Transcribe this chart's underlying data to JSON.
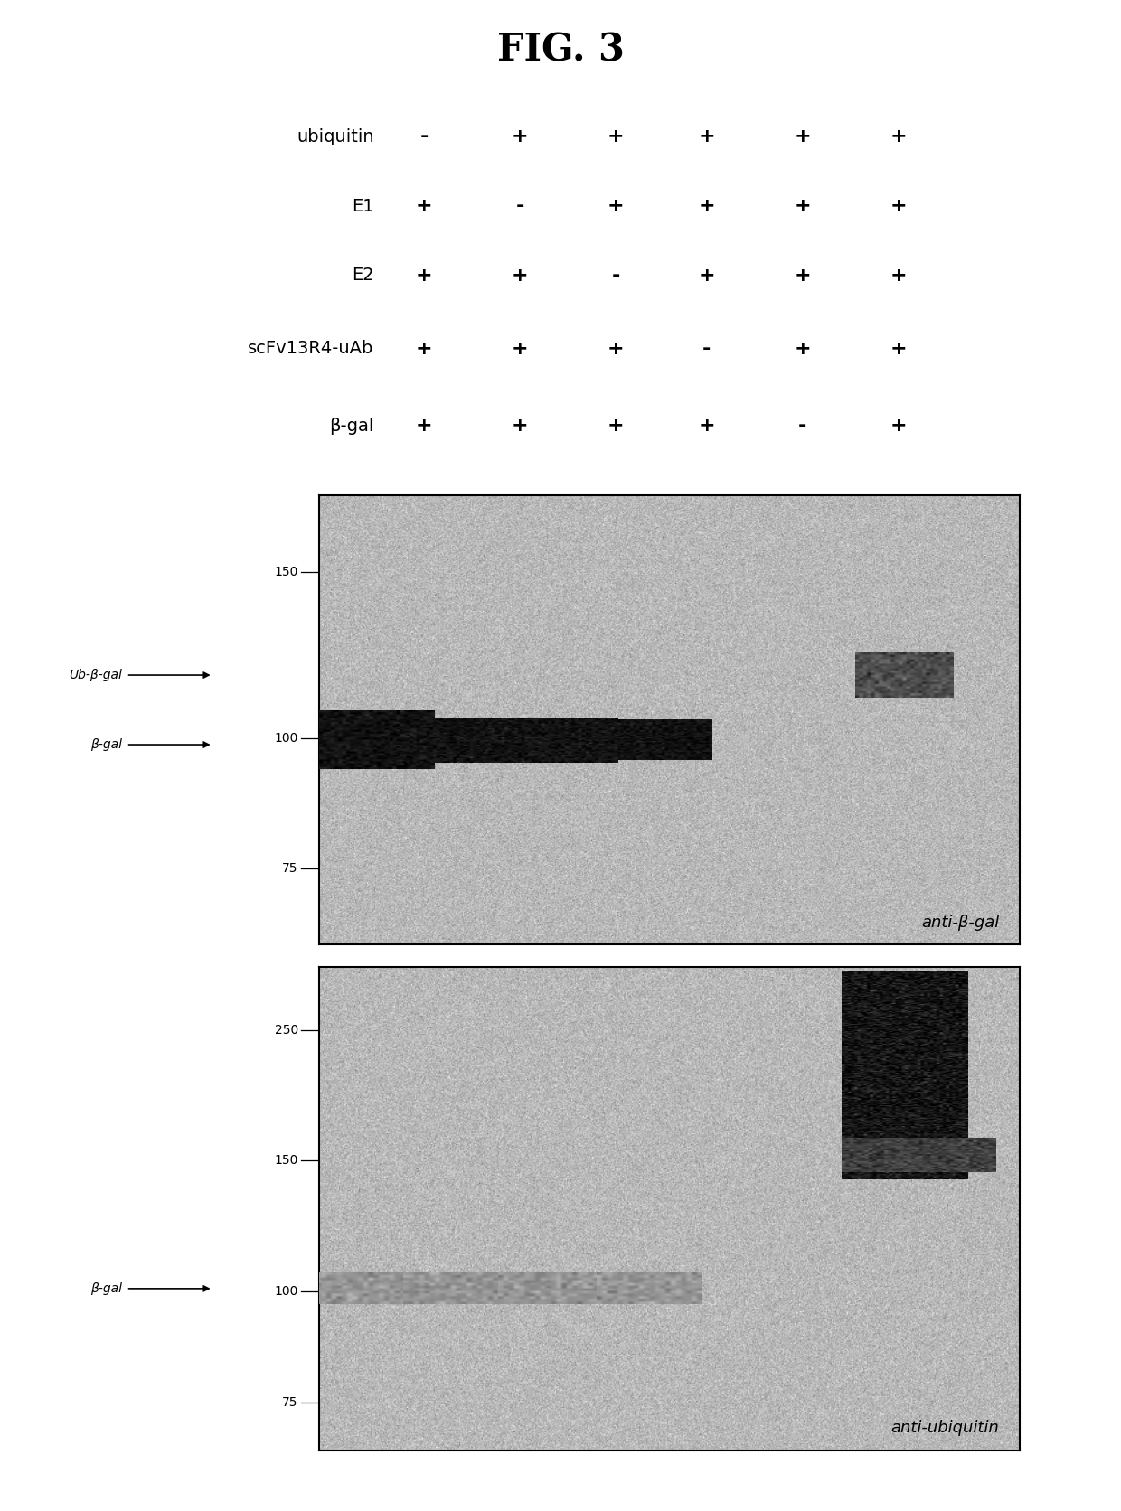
{
  "title": "FIG. 3",
  "title_fontsize": 30,
  "title_fontweight": "bold",
  "bg_color": "#ffffff",
  "row_labels": [
    "ubiquitin",
    "E1",
    "E2",
    "scFv13R4-uAb",
    "β-gal"
  ],
  "col_signs": [
    [
      "-",
      "+",
      "+",
      "+",
      "+",
      "+"
    ],
    [
      "+",
      "-",
      "+",
      "+",
      "+",
      "+"
    ],
    [
      "+",
      "+",
      "-",
      "+",
      "+",
      "+"
    ],
    [
      "+",
      "+",
      "+",
      "-",
      "+",
      "+"
    ],
    [
      "+",
      "+",
      "+",
      "+",
      "-",
      "+"
    ]
  ],
  "panel1_label": "anti-β-gal",
  "panel2_label": "anti-ubiquitin",
  "mw_markers_panel1": [
    "150",
    "100",
    "75"
  ],
  "mw_y_panel1": {
    "150": 0.83,
    "100": 0.46,
    "75": 0.17
  },
  "mw_markers_panel2": [
    "250",
    "150",
    "100",
    "75"
  ],
  "mw_y_panel2": {
    "250": 0.87,
    "150": 0.6,
    "100": 0.33,
    "75": 0.1
  },
  "noise_mean": 0.72,
  "noise_std": 0.055,
  "figure_width": 12.4,
  "figure_height": 16.72
}
